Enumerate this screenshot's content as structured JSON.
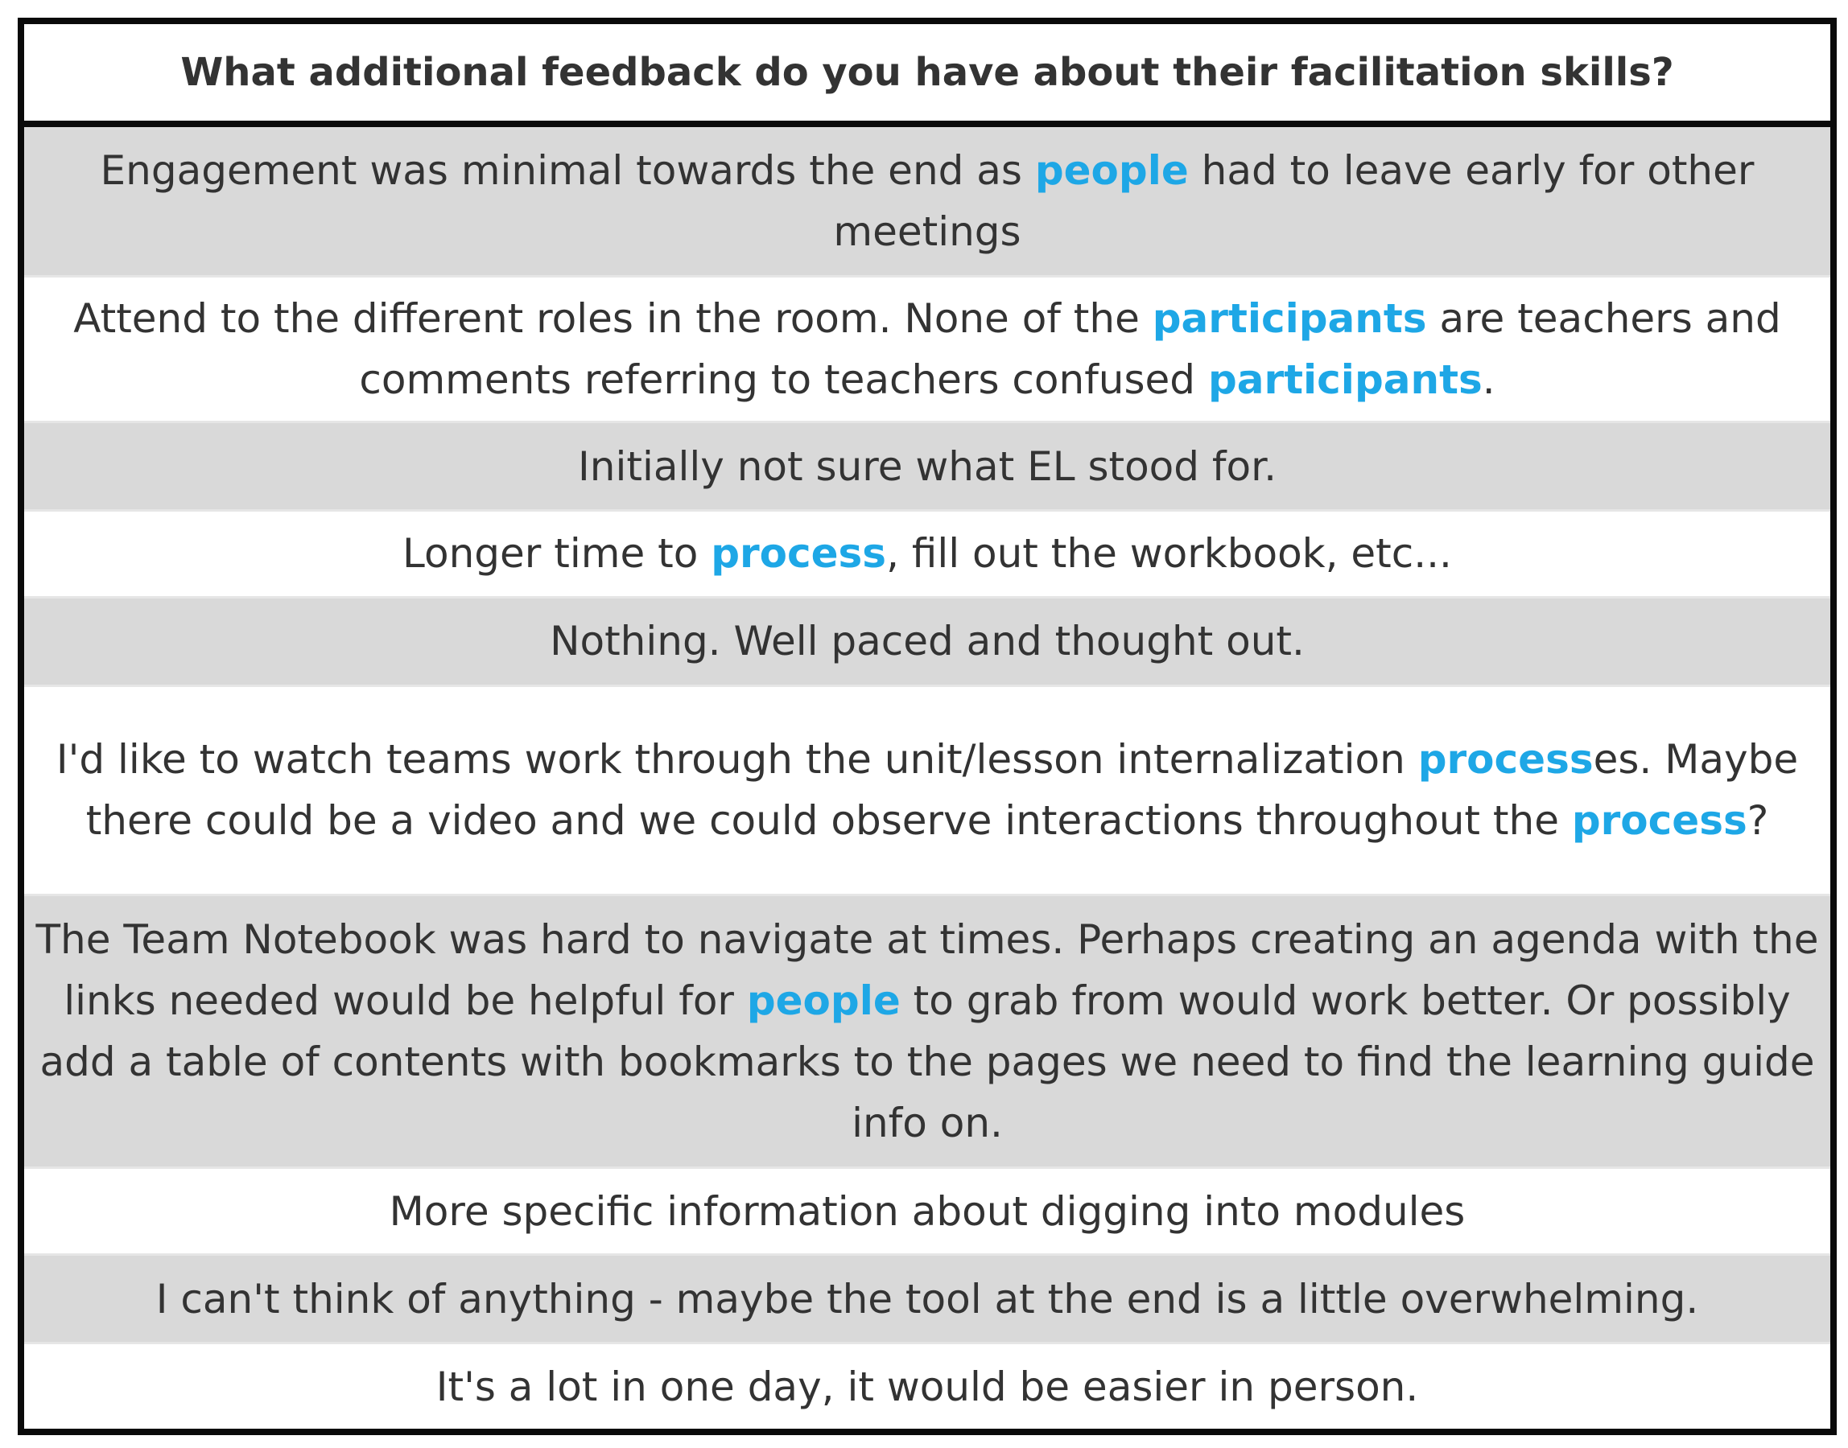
{
  "header": {
    "question": "What additional feedback do you have about their facilitation skills?"
  },
  "colors": {
    "highlight": "#1ea7e6",
    "text": "#333333",
    "shaded_row": "#d9d9d9",
    "border": "#0a0a0a"
  },
  "responses": [
    {
      "shaded": true,
      "segments": [
        {
          "text": "Engagement was minimal towards the end as ",
          "highlight": false
        },
        {
          "text": "people",
          "highlight": true
        },
        {
          "text": " had to leave early for other meetings",
          "highlight": false
        }
      ]
    },
    {
      "shaded": false,
      "segments": [
        {
          "text": "Attend to the different roles in the room. None of the ",
          "highlight": false
        },
        {
          "text": "participants",
          "highlight": true
        },
        {
          "text": " are teachers and comments referring to teachers confused ",
          "highlight": false
        },
        {
          "text": "participants",
          "highlight": true
        },
        {
          "text": ".",
          "highlight": false
        }
      ]
    },
    {
      "shaded": true,
      "segments": [
        {
          "text": "Initially not sure what EL stood for.",
          "highlight": false
        }
      ]
    },
    {
      "shaded": false,
      "segments": [
        {
          "text": "Longer time to ",
          "highlight": false
        },
        {
          "text": "process",
          "highlight": true
        },
        {
          "text": ", fill out the workbook, etc...",
          "highlight": false
        }
      ]
    },
    {
      "shaded": true,
      "segments": [
        {
          "text": "Nothing. Well paced and thought out.",
          "highlight": false
        }
      ]
    },
    {
      "shaded": false,
      "segments": [
        {
          "text": "I'd like to watch teams work through the unit/lesson internalization ",
          "highlight": false
        },
        {
          "text": "process",
          "highlight": true
        },
        {
          "text": "es. Maybe there could be a video and we could observe interactions throughout the ",
          "highlight": false
        },
        {
          "text": "process",
          "highlight": true
        },
        {
          "text": "?",
          "highlight": false
        }
      ]
    },
    {
      "shaded": true,
      "segments": [
        {
          "text": "The Team Notebook was hard to navigate at times. Perhaps creating an agenda with the links needed would be helpful for ",
          "highlight": false
        },
        {
          "text": "people",
          "highlight": true
        },
        {
          "text": " to grab from would work better. Or possibly add a table of contents with bookmarks to the pages we need to find the learning guide info on.",
          "highlight": false
        }
      ]
    },
    {
      "shaded": false,
      "segments": [
        {
          "text": "More specific information about digging into modules",
          "highlight": false
        }
      ]
    },
    {
      "shaded": true,
      "segments": [
        {
          "text": "I can't think of anything - maybe the tool at the end is a little overwhelming.",
          "highlight": false
        }
      ]
    },
    {
      "shaded": false,
      "segments": [
        {
          "text": "It's a lot in one day, it would be easier in person.",
          "highlight": false
        }
      ]
    }
  ]
}
